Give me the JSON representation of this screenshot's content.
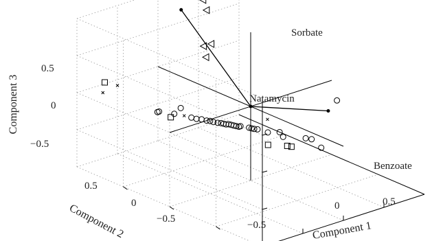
{
  "chart_data": {
    "type": "scatter",
    "projection": "3d-biplot",
    "title": "",
    "xlabel": "Component 1",
    "ylabel": "Component 2",
    "zlabel": "Component 3",
    "xlim": [
      -1,
      1
    ],
    "ylim": [
      -1,
      1
    ],
    "zlim": [
      -1,
      1
    ],
    "xticks": [
      "−0.5",
      "0",
      "0.5"
    ],
    "yticks": [
      "−0.5",
      "0",
      "0.5"
    ],
    "zticks": [
      "−0.5",
      "0",
      "0.5"
    ],
    "grid": true,
    "legend": "none",
    "vectors": [
      {
        "name": "Sorbate",
        "x": 0.0,
        "y": 0.75,
        "z": 0.9
      },
      {
        "name": "Natamycin",
        "x": 0.0,
        "y": 0.0,
        "z": 0.0
      },
      {
        "name": "Benzoate",
        "x": 0.9,
        "y": -0.05,
        "z": -0.35
      }
    ],
    "series": [
      {
        "marker": "circle",
        "points": [
          [
            -0.75,
            0.35,
            0.0
          ],
          [
            -0.73,
            0.35,
            0.0
          ],
          [
            -0.6,
            0.3,
            -0.05
          ],
          [
            -0.52,
            0.3,
            0.0
          ],
          [
            -0.48,
            0.22,
            -0.1
          ],
          [
            -0.44,
            0.2,
            -0.12
          ],
          [
            -0.4,
            0.18,
            -0.13
          ],
          [
            -0.36,
            0.16,
            -0.15
          ],
          [
            -0.33,
            0.15,
            -0.16
          ],
          [
            -0.3,
            0.14,
            -0.18
          ],
          [
            -0.27,
            0.12,
            -0.19
          ],
          [
            -0.24,
            0.11,
            -0.2
          ],
          [
            -0.22,
            0.1,
            -0.21
          ],
          [
            -0.2,
            0.09,
            -0.22
          ],
          [
            -0.18,
            0.08,
            -0.22
          ],
          [
            -0.16,
            0.07,
            -0.23
          ],
          [
            -0.14,
            0.06,
            -0.24
          ],
          [
            -0.12,
            0.05,
            -0.25
          ],
          [
            -0.1,
            0.04,
            -0.26
          ],
          [
            -0.08,
            0.04,
            -0.26
          ],
          [
            -0.02,
            0.0,
            -0.28
          ],
          [
            0.0,
            -0.01,
            -0.29
          ],
          [
            0.02,
            -0.02,
            -0.3
          ],
          [
            0.05,
            -0.03,
            -0.31
          ],
          [
            0.12,
            -0.08,
            -0.35
          ],
          [
            0.22,
            -0.12,
            -0.36
          ],
          [
            0.24,
            -0.14,
            -0.42
          ],
          [
            0.45,
            -0.2,
            -0.48
          ],
          [
            0.5,
            -0.22,
            -0.5
          ],
          [
            0.55,
            -0.28,
            -0.6
          ],
          [
            0.95,
            -0.1,
            -0.2
          ]
        ]
      },
      {
        "marker": "square",
        "points": [
          [
            -1.0,
            0.7,
            0.3
          ],
          [
            -0.62,
            0.32,
            -0.1
          ],
          [
            0.1,
            -0.1,
            -0.5
          ],
          [
            0.28,
            -0.15,
            -0.55
          ],
          [
            0.32,
            -0.16,
            -0.57
          ]
        ]
      },
      {
        "marker": "triangle",
        "points": [
          [
            0.2,
            0.9,
            0.95
          ],
          [
            0.35,
            0.95,
            0.9
          ],
          [
            0.5,
            0.95,
            0.75
          ],
          [
            0.6,
            1.0,
            0.55
          ],
          [
            0.05,
            0.55,
            0.5
          ],
          [
            0.2,
            0.6,
            0.45
          ],
          [
            0.25,
            0.7,
            0.2
          ]
        ]
      },
      {
        "marker": "x",
        "points": [
          [
            -0.9,
            0.65,
            0.25
          ],
          [
            -1.0,
            0.72,
            0.15
          ],
          [
            -0.5,
            0.28,
            -0.1
          ],
          [
            0.15,
            -0.05,
            -0.2
          ]
        ]
      }
    ]
  }
}
